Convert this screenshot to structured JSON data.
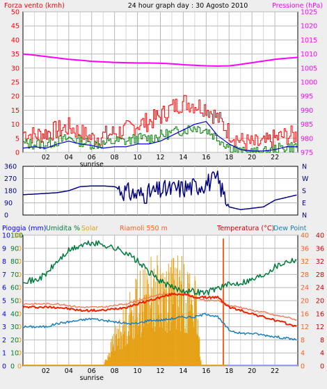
{
  "title": "24 hour graph day : 30 Agosto 2010",
  "colors": {
    "bg": "#eeeeee",
    "plot": "#ffffff",
    "grid": "#b8b8b8",
    "wind_gust": "#ff0000",
    "wind_avg": "#008000",
    "wind_line": "#0000cc",
    "pressure": "#ff00ff",
    "direction": "#000080",
    "rain": "#0000ff",
    "humidity": "#007b3e",
    "solar": "#e6a117",
    "temperature": "#ee2200",
    "temp_alt": "#f08060",
    "dewpoint": "#1a7fbf",
    "riamoli": "#ff6020"
  },
  "chart_data": [
    {
      "type": "line",
      "name": "wind-pressure",
      "left_label": "Forza vento (kmh)",
      "right_label": "Pressione (hPa)",
      "x_ticks": [
        "02",
        "04",
        "06",
        "08",
        "10",
        "12",
        "14",
        "16",
        "18",
        "20",
        "22"
      ],
      "sunrise_label": "sunrise",
      "left_ylim": [
        0,
        50
      ],
      "left_ticks": [
        "0",
        "5",
        "10",
        "15",
        "20",
        "25",
        "30",
        "35",
        "40",
        "45",
        "50"
      ],
      "right_ylim": [
        975,
        1025
      ],
      "right_ticks": [
        "975",
        "980",
        "985",
        "990",
        "995",
        "1000",
        "1005",
        "1010",
        "1015",
        "1020",
        "1025"
      ],
      "pressure": {
        "hours": [
          0,
          1,
          2,
          3,
          4,
          5,
          6,
          7,
          8,
          9,
          10,
          11,
          12,
          13,
          14,
          15,
          16,
          17,
          18,
          19,
          20,
          21,
          22,
          23,
          24
        ],
        "values": [
          1010,
          1009.6,
          1009.1,
          1008.6,
          1008.1,
          1007.8,
          1007.4,
          1007.2,
          1007.0,
          1006.9,
          1006.8,
          1006.8,
          1006.7,
          1006.5,
          1006.2,
          1006.0,
          1005.8,
          1005.7,
          1005.8,
          1006.3,
          1006.9,
          1007.5,
          1008.1,
          1008.5,
          1008.8
        ]
      },
      "wind_line": {
        "hours": [
          0,
          1,
          2,
          3,
          4,
          5,
          6,
          7,
          8,
          9,
          10,
          11,
          12,
          13,
          14,
          15,
          16,
          17,
          18,
          19,
          20,
          21,
          22,
          23,
          24
        ],
        "values": [
          1.5,
          2,
          1.5,
          3,
          4,
          3,
          2.5,
          1.5,
          2,
          2,
          3,
          3,
          4,
          6,
          8,
          10,
          11,
          6,
          3,
          1,
          0.5,
          0.5,
          1,
          2,
          2
        ]
      },
      "wind_gust": {
        "hours": [
          0,
          1,
          2,
          3,
          4,
          5,
          6,
          7,
          8,
          9,
          10,
          11,
          12,
          13,
          14,
          15,
          16,
          17,
          18,
          19,
          20,
          21,
          22,
          23,
          24
        ],
        "values": [
          7,
          6,
          7,
          8,
          9,
          7,
          5,
          6,
          7,
          8,
          10,
          11,
          13,
          16,
          18,
          17,
          16,
          12,
          7,
          4,
          3,
          3,
          5,
          6,
          6
        ]
      },
      "wind_avg": {
        "hours": [
          0,
          1,
          2,
          3,
          4,
          5,
          6,
          7,
          8,
          9,
          10,
          11,
          12,
          13,
          14,
          15,
          16,
          17,
          18,
          19,
          20,
          21,
          22,
          23,
          24
        ],
        "values": [
          3,
          3,
          3,
          4,
          5,
          4,
          3,
          3,
          4,
          4,
          5,
          5,
          6,
          7,
          8,
          9,
          8,
          5,
          2,
          0,
          0,
          0,
          1,
          2,
          2
        ]
      }
    },
    {
      "type": "line",
      "name": "wind-direction",
      "left_ticks": [
        "0",
        "90",
        "180",
        "270",
        "360"
      ],
      "ylim": [
        0,
        360
      ],
      "right_ticks": [
        "N",
        "W",
        "S",
        "E",
        "N"
      ],
      "direction": {
        "hours": [
          0,
          1,
          2,
          3,
          4,
          5,
          6,
          7,
          8,
          9,
          10,
          11,
          12,
          13,
          14,
          15,
          16,
          17,
          18,
          19,
          20,
          21,
          22,
          23,
          24
        ],
        "values": [
          150,
          155,
          160,
          165,
          180,
          210,
          215,
          215,
          210,
          170,
          150,
          160,
          180,
          190,
          200,
          210,
          240,
          260,
          60,
          40,
          50,
          60,
          110,
          130,
          150
        ]
      }
    },
    {
      "type": "line",
      "name": "humidity-temperature",
      "labels": {
        "rain": "Pioggia (mm)",
        "humidity": "Umidita %",
        "solar": "Solar",
        "riamoli": "Riamoli 550 m",
        "temperature": "Temperatura (°C)",
        "dewpoint": "Dew Point"
      },
      "x_ticks": [
        "02",
        "04",
        "06",
        "08",
        "10",
        "12",
        "14",
        "16",
        "18",
        "20",
        "22"
      ],
      "sunrise_label": "sunrise",
      "rain_ticks": [
        "0",
        "1",
        "2",
        "3",
        "4",
        "5",
        "6",
        "7",
        "8",
        "9",
        "10"
      ],
      "humidity_ticks": [
        "0",
        "10",
        "20",
        "30",
        "40",
        "50",
        "60",
        "70",
        "80",
        "90",
        "100"
      ],
      "solar_ticks": [
        "0",
        "0",
        "0",
        "0",
        "0",
        "0",
        "0",
        "0",
        "0",
        "0",
        "30"
      ],
      "temp_ticks": [
        "0",
        "4",
        "8",
        "12",
        "16",
        "20",
        "24",
        "28",
        "32",
        "36",
        "40"
      ],
      "temp_ticks_right": [
        "0",
        "4",
        "8",
        "12",
        "16",
        "20",
        "24",
        "28",
        "32",
        "36",
        "40"
      ],
      "ylim": [
        0,
        40
      ],
      "humidity": {
        "hours": [
          0,
          1,
          2,
          3,
          4,
          5,
          6,
          7,
          8,
          9,
          10,
          11,
          12,
          13,
          14,
          15,
          16,
          17,
          18,
          19,
          20,
          21,
          22,
          23,
          24
        ],
        "values": [
          66,
          65,
          70,
          80,
          88,
          92,
          94,
          93,
          90,
          87,
          80,
          72,
          65,
          60,
          58,
          57,
          56,
          60,
          62,
          64,
          66,
          70,
          76,
          80,
          82
        ]
      },
      "temperature": {
        "hours": [
          0,
          1,
          2,
          3,
          4,
          5,
          6,
          7,
          8,
          9,
          10,
          11,
          12,
          13,
          14,
          15,
          16,
          17,
          18,
          19,
          20,
          21,
          22,
          23,
          24
        ],
        "values": [
          18,
          18,
          18,
          18,
          17.5,
          17,
          17,
          17,
          17.5,
          18,
          19,
          20,
          21,
          22,
          22,
          21,
          21,
          21,
          18,
          17,
          16,
          15,
          14,
          13,
          12
        ]
      },
      "temp_alt": {
        "hours": [
          0,
          1,
          2,
          3,
          4,
          5,
          6,
          7,
          8,
          9,
          10,
          11,
          12,
          13,
          14,
          15,
          16,
          17,
          18,
          19,
          20,
          21,
          22,
          23,
          24
        ],
        "values": [
          19,
          19,
          19,
          19,
          18.5,
          18,
          18,
          18,
          18.5,
          19,
          20,
          21,
          22,
          22,
          22,
          21,
          20,
          20,
          18.5,
          18,
          17,
          16.5,
          15.5,
          15,
          14
        ]
      },
      "dewpoint": {
        "hours": [
          0,
          1,
          2,
          3,
          4,
          5,
          6,
          7,
          8,
          9,
          10,
          11,
          12,
          13,
          14,
          15,
          16,
          17,
          18,
          19,
          20,
          21,
          22,
          23,
          24
        ],
        "values": [
          12,
          12,
          12,
          13,
          13.5,
          14,
          14.5,
          14,
          13.5,
          13,
          13,
          14,
          14,
          14.5,
          15,
          15,
          16,
          15,
          11,
          10,
          10,
          9.5,
          9,
          8.5,
          8
        ]
      },
      "solar": {
        "hours": [
          7,
          8,
          9,
          10,
          11,
          12,
          13,
          14,
          15,
          15.6
        ],
        "values": [
          0,
          10,
          17,
          24,
          28,
          28.5,
          29,
          28,
          25,
          0
        ]
      },
      "riamoli_spike_hour": 17.5,
      "riamoli_spike_value": 39
    }
  ]
}
